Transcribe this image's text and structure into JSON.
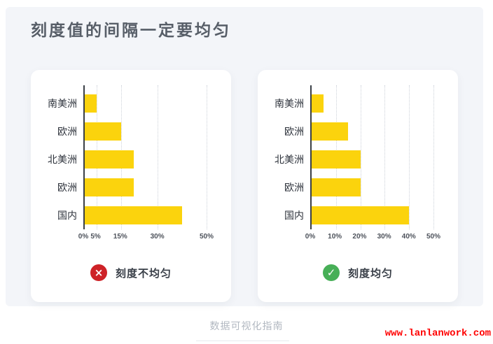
{
  "page": {
    "title": "刻度值的间隔一定要均匀",
    "footer_caption": "数据可视化指南",
    "watermark": "www.lanlanwork.com"
  },
  "colors": {
    "panel_bg": "#f3f5f9",
    "card_bg": "#ffffff",
    "bar": "#fbd30d",
    "axis": "#3a3f46",
    "bad": "#ce2227",
    "good": "#47af57",
    "watermark": "#ff0000"
  },
  "chart_data": [
    {
      "type": "bar",
      "orientation": "horizontal",
      "categories": [
        "南美洲",
        "欧洲",
        "北美洲",
        "欧洲",
        "国内"
      ],
      "values": [
        5,
        15,
        20,
        20,
        40
      ],
      "unit": "%",
      "xlim": [
        0,
        50
      ],
      "x_ticks": [
        {
          "label": "0%",
          "value": 0
        },
        {
          "label": "5%",
          "value": 5
        },
        {
          "label": "15%",
          "value": 15
        },
        {
          "label": "30%",
          "value": 30
        },
        {
          "label": "50%",
          "value": 50
        }
      ],
      "grid": "dotted-vertical",
      "legend": "none",
      "caption": {
        "label": "刻度不均匀",
        "status": "bad",
        "icon": "cross",
        "glyph": "×"
      }
    },
    {
      "type": "bar",
      "orientation": "horizontal",
      "categories": [
        "南美洲",
        "欧洲",
        "北美洲",
        "欧洲",
        "国内"
      ],
      "values": [
        5,
        15,
        20,
        20,
        40
      ],
      "unit": "%",
      "xlim": [
        0,
        50
      ],
      "x_ticks": [
        {
          "label": "0%",
          "value": 0
        },
        {
          "label": "10%",
          "value": 10
        },
        {
          "label": "20%",
          "value": 20
        },
        {
          "label": "30%",
          "value": 30
        },
        {
          "label": "40%",
          "value": 40
        },
        {
          "label": "50%",
          "value": 50
        }
      ],
      "grid": "dotted-vertical",
      "legend": "none",
      "caption": {
        "label": "刻度均匀",
        "status": "good",
        "icon": "check",
        "glyph": "✓"
      }
    }
  ]
}
